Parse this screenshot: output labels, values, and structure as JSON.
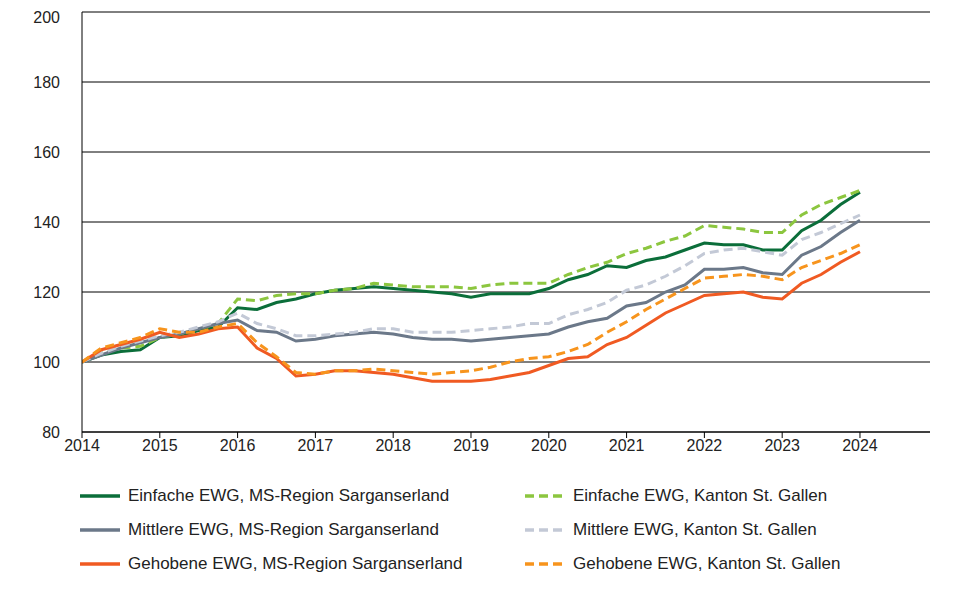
{
  "chart_data": {
    "type": "line",
    "x": [
      2014,
      2014.25,
      2014.5,
      2014.75,
      2015,
      2015.25,
      2015.5,
      2015.75,
      2016,
      2016.25,
      2016.5,
      2016.75,
      2017,
      2017.25,
      2017.5,
      2017.75,
      2018,
      2018.25,
      2018.5,
      2018.75,
      2019,
      2019.25,
      2019.5,
      2019.75,
      2020,
      2020.25,
      2020.5,
      2020.75,
      2021,
      2021.25,
      2021.5,
      2021.75,
      2022,
      2022.25,
      2022.5,
      2022.75,
      2023,
      2023.25,
      2023.5,
      2023.75,
      2024
    ],
    "xlim": [
      2014,
      2024.9
    ],
    "xticks": [
      2014,
      2015,
      2016,
      2017,
      2018,
      2019,
      2020,
      2021,
      2022,
      2023,
      2024
    ],
    "ylim": [
      80,
      200
    ],
    "yticks": [
      80,
      100,
      120,
      140,
      160,
      180,
      200
    ],
    "grid": true,
    "legend": "bottom",
    "series": [
      {
        "name": "Einfache EWG, MS-Region Sarganserland",
        "color": "#0b6e3a",
        "line_style": "solid",
        "values": [
          100,
          102,
          103,
          103.5,
          107,
          107.5,
          109,
          110,
          115.5,
          115,
          117,
          118,
          119.5,
          120.5,
          121,
          121.5,
          121,
          120.5,
          120,
          119.5,
          118.5,
          119.5,
          119.5,
          119.5,
          121,
          123.5,
          125,
          127.5,
          127,
          129,
          130,
          132,
          134,
          133.5,
          133.5,
          132,
          132,
          137.5,
          140.5,
          145,
          148.5
        ]
      },
      {
        "name": "Einfache EWG, Kanton St. Gallen",
        "color": "#8cc63f",
        "line_style": "dashed",
        "values": [
          100,
          102.5,
          104,
          104.5,
          107,
          108,
          109.5,
          111,
          118,
          117.5,
          119,
          119.5,
          119.5,
          120.5,
          121,
          122.5,
          122,
          121.5,
          121.5,
          121.5,
          121,
          122,
          122.5,
          122.5,
          122.5,
          125,
          127,
          128.5,
          131,
          132.5,
          134.5,
          136,
          139,
          138.5,
          138,
          137,
          137,
          142,
          145,
          147,
          149
        ]
      },
      {
        "name": "Mittlere EWG, MS-Region Sarganserland",
        "color": "#6b7889",
        "line_style": "solid",
        "values": [
          100,
          102,
          104,
          105.5,
          107,
          108,
          109.5,
          111,
          112,
          109,
          108.5,
          106,
          106.5,
          107.5,
          108,
          108.5,
          108,
          107,
          106.5,
          106.5,
          106,
          106.5,
          107,
          107.5,
          108,
          110,
          111.5,
          112.5,
          116,
          117,
          120,
          122,
          126.5,
          126.5,
          127,
          125.5,
          125,
          130.5,
          133,
          137,
          140.5
        ]
      },
      {
        "name": "Mittlere EWG, Kanton St. Gallen",
        "color": "#c3c9d6",
        "line_style": "dashed",
        "values": [
          100,
          102.5,
          104.5,
          106,
          107.5,
          108.5,
          110,
          111.5,
          114,
          111,
          109.5,
          107.5,
          107.5,
          108,
          108.5,
          109.5,
          109.5,
          108.5,
          108.5,
          108.5,
          109,
          109.5,
          110,
          111,
          111,
          113.5,
          115,
          117,
          120.5,
          122,
          124.5,
          127.5,
          131,
          132,
          132.5,
          131.5,
          130.5,
          135,
          137,
          139.5,
          142
        ]
      },
      {
        "name": "Gehobene EWG, MS-Region Sarganserland",
        "color": "#f05a22",
        "line_style": "solid",
        "values": [
          100,
          103.5,
          105,
          106.5,
          108.5,
          107,
          108,
          109.5,
          110,
          104,
          101,
          96,
          96.5,
          97.5,
          97.5,
          97,
          96.5,
          95.5,
          94.5,
          94.5,
          94.5,
          95,
          96,
          97,
          99,
          101,
          101.5,
          105,
          107,
          110.5,
          114,
          116.5,
          119,
          119.5,
          120,
          118.5,
          118,
          122.5,
          125,
          128.5,
          131.5
        ]
      },
      {
        "name": "Gehobene EWG, Kanton St. Gallen",
        "color": "#f7941d",
        "line_style": "dashed",
        "values": [
          100,
          104,
          105.5,
          107,
          109.5,
          108.5,
          108.5,
          110,
          111,
          105.5,
          101.5,
          97,
          96.5,
          97.5,
          97.5,
          98,
          97.5,
          97,
          96.5,
          97,
          97.5,
          98.5,
          100,
          101,
          101.5,
          103,
          105,
          108.5,
          111.5,
          115,
          118,
          121,
          124,
          124.5,
          125,
          124.5,
          123.5,
          127,
          129,
          131,
          133.5
        ]
      }
    ]
  }
}
